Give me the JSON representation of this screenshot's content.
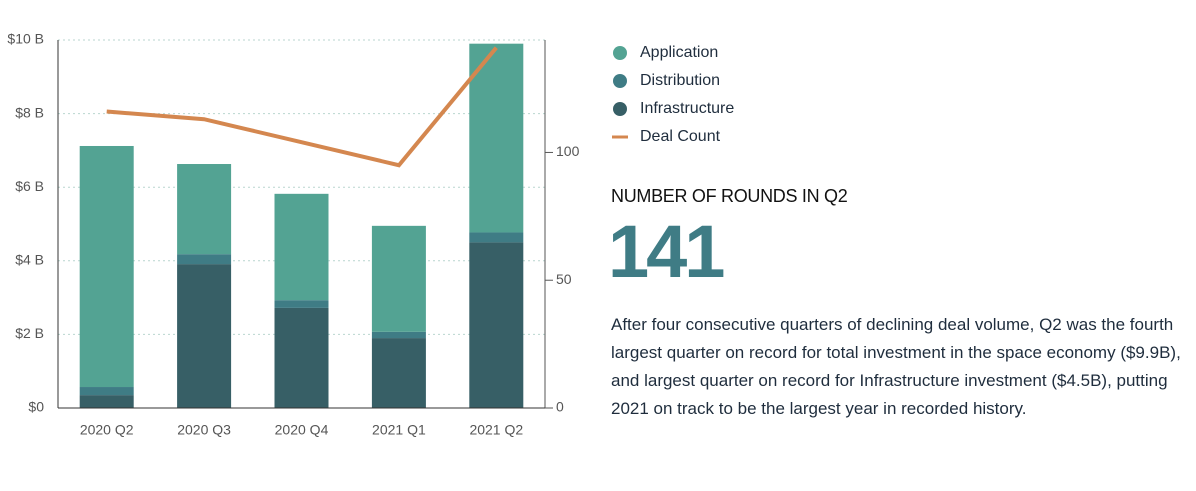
{
  "chart_data": {
    "type": "bar",
    "stacked": true,
    "categories": [
      "2020 Q2",
      "2020 Q3",
      "2020 Q4",
      "2021 Q1",
      "2021 Q2"
    ],
    "series": [
      {
        "name": "Application",
        "color": "#53a393",
        "values": [
          6.55,
          2.45,
          2.89,
          2.88,
          5.13
        ]
      },
      {
        "name": "Distribution",
        "color": "#3f7c85",
        "values": [
          0.22,
          0.27,
          0.21,
          0.17,
          0.27
        ]
      },
      {
        "name": "Infrastructure",
        "color": "#375f66",
        "values": [
          0.35,
          3.91,
          2.72,
          1.9,
          4.5
        ]
      },
      {
        "name": "Deal Count",
        "type": "line",
        "axis": "y2",
        "color": "#d4874f",
        "values": [
          116,
          113,
          104,
          95,
          141
        ]
      }
    ],
    "ylim": [
      0,
      10
    ],
    "yticks": [
      {
        "value": 0,
        "label": "$0"
      },
      {
        "value": 2,
        "label": "$2 B"
      },
      {
        "value": 4,
        "label": "$4 B"
      },
      {
        "value": 6,
        "label": "$6 B"
      },
      {
        "value": 8,
        "label": "$8 B"
      },
      {
        "value": 10,
        "label": "$10 B"
      }
    ],
    "y2lim": [
      0,
      144
    ],
    "y2ticks": [
      0,
      50,
      100
    ],
    "grid": true
  },
  "sidebar": {
    "heading": "NUMBER OF ROUNDS IN Q2",
    "value": 141,
    "text": "After four consecutive quarters of declining deal volume, Q2 was the fourth largest quarter on record for total investment in the space economy ($9.9B), and largest quarter on record for Infrastructure investment ($4.5B), putting 2021 on track to be the largest year in recorded history."
  }
}
